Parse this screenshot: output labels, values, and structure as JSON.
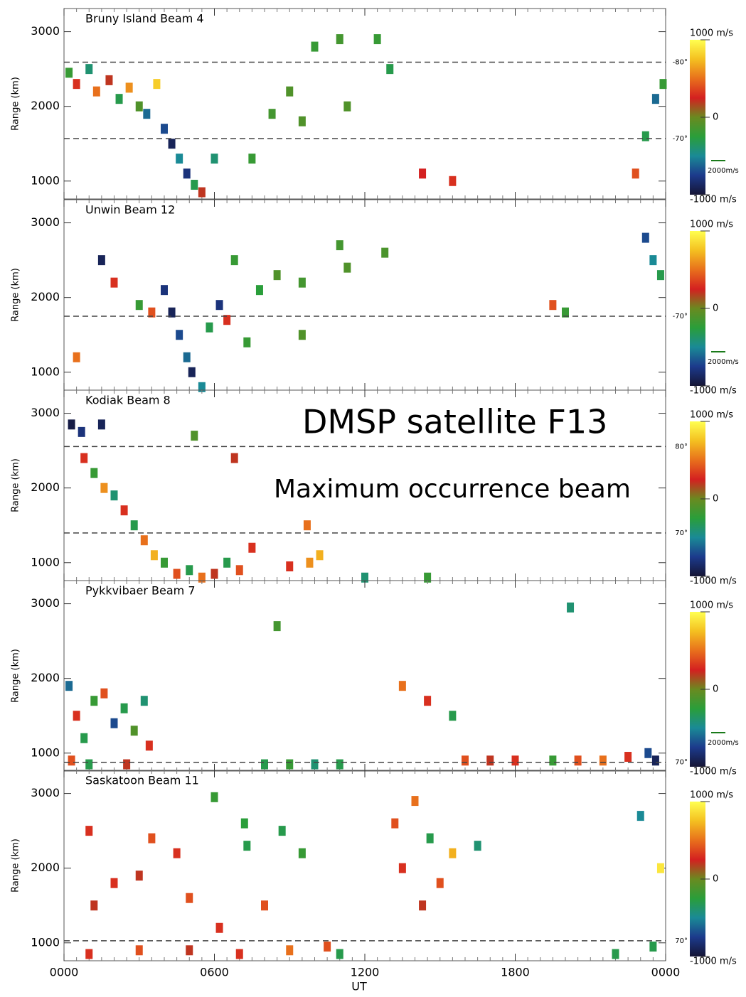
{
  "chart_data": [
    {
      "type": "scatter",
      "title": "Bruny Island  Beam 4",
      "ylabel": "Range (km)",
      "xlim": [
        0,
        24
      ],
      "ylim": [
        760,
        3310
      ],
      "yticks": [
        1000,
        2000,
        3000
      ],
      "x": [
        0.2,
        0.5,
        1.0,
        1.3,
        1.8,
        2.2,
        2.6,
        3.0,
        3.3,
        3.7,
        4.0,
        4.3,
        4.6,
        4.9,
        5.2,
        5.5,
        6.0,
        7.5,
        8.3,
        9.0,
        9.5,
        10.0,
        11.0,
        11.3,
        12.5,
        13.0,
        14.3,
        15.5,
        22.8,
        23.2,
        23.6,
        23.9
      ],
      "values": [
        2450,
        2300,
        2500,
        2200,
        2350,
        2100,
        2250,
        2000,
        1900,
        2300,
        1700,
        1500,
        1300,
        1100,
        950,
        850,
        1300,
        1300,
        1900,
        2200,
        1800,
        2800,
        2900,
        2000,
        2900,
        2500,
        1100,
        1000,
        1100,
        1600,
        2100,
        2300
      ],
      "velocity": [
        -200,
        300,
        -400,
        500,
        200,
        -300,
        600,
        -100,
        -600,
        800,
        -700,
        -900,
        -500,
        -800,
        -300,
        200,
        -400,
        -200,
        -150,
        -100,
        -100,
        -200,
        -150,
        -100,
        -200,
        -300,
        250,
        300,
        400,
        -300,
        -600,
        -200
      ],
      "reference_lines": [
        {
          "range": 2592,
          "latitude_label": "-80°"
        },
        {
          "range": 1569,
          "latitude_label": "-70°"
        }
      ],
      "colorbar": {
        "vlim": [
          -1000,
          1000
        ],
        "ticks": [
          {
            "value": 1000,
            "label": "1000 m/s"
          },
          0,
          {
            "value": -1000,
            "label": "-1000 m/s"
          }
        ],
        "scale_label": "2000m/s",
        "colormap": [
          "#151535",
          "#1c3a8c",
          "#1a8a96",
          "#2a9e3a",
          "#6a8a20",
          "#d42020",
          "#e8701c",
          "#f4c020",
          "#ffff50"
        ]
      }
    },
    {
      "type": "scatter",
      "title": "Unwin  Beam 12",
      "ylabel": "Range (km)",
      "xlim": [
        0,
        24
      ],
      "ylim": [
        760,
        3310
      ],
      "yticks": [
        1000,
        2000,
        3000
      ],
      "x": [
        0.5,
        1.5,
        2.0,
        3.0,
        3.5,
        4.0,
        4.3,
        4.6,
        4.9,
        5.1,
        5.5,
        5.8,
        6.2,
        6.5,
        6.8,
        7.3,
        7.8,
        8.5,
        9.5,
        9.5,
        11.0,
        11.3,
        12.8,
        19.5,
        20.0,
        23.2,
        23.5,
        23.8
      ],
      "values": [
        1200,
        2500,
        2200,
        1900,
        1800,
        2100,
        1800,
        1500,
        1200,
        1000,
        800,
        1600,
        1900,
        1700,
        2500,
        1400,
        2100,
        2300,
        1500,
        2200,
        2700,
        2400,
        2600,
        1900,
        1800,
        2800,
        2500,
        2300
      ],
      "velocity": [
        500,
        -900,
        300,
        -200,
        400,
        -800,
        -900,
        -700,
        -600,
        -900,
        -500,
        -300,
        -800,
        300,
        -200,
        -200,
        -250,
        -100,
        -100,
        -150,
        -150,
        -100,
        -120,
        400,
        -200,
        -700,
        -500,
        -300
      ],
      "reference_lines": [
        {
          "range": 1749,
          "latitude_label": "-70°"
        }
      ],
      "colorbar": {
        "vlim": [
          -1000,
          1000
        ],
        "ticks": [
          {
            "value": 1000,
            "label": "1000 m/s"
          },
          0,
          {
            "value": -1000,
            "label": "-1000 m/s"
          }
        ],
        "scale_label": "2000m/s",
        "colormap": [
          "#151535",
          "#1c3a8c",
          "#1a8a96",
          "#2a9e3a",
          "#6a8a20",
          "#d42020",
          "#e8701c",
          "#f4c020",
          "#ffff50"
        ]
      }
    },
    {
      "type": "scatter",
      "title": "Kodiak  Beam 8",
      "ylabel": "Range (km)",
      "xlim": [
        0,
        24
      ],
      "ylim": [
        760,
        3310
      ],
      "yticks": [
        1000,
        2000,
        3000
      ],
      "x": [
        0.3,
        0.7,
        1.5,
        0.8,
        1.2,
        1.6,
        2.0,
        2.4,
        2.8,
        3.2,
        3.6,
        4.0,
        4.5,
        5.0,
        5.5,
        6.0,
        6.5,
        7.0,
        7.5,
        5.2,
        6.8,
        9.0,
        9.8,
        10.2,
        9.7,
        12.0,
        14.5
      ],
      "values": [
        2850,
        2750,
        2850,
        2400,
        2200,
        2000,
        1900,
        1700,
        1500,
        1300,
        1100,
        1000,
        850,
        900,
        800,
        850,
        1000,
        900,
        1200,
        2700,
        2400,
        950,
        1000,
        1100,
        1500,
        800,
        800
      ],
      "velocity": [
        -950,
        -800,
        -900,
        300,
        -200,
        600,
        -400,
        300,
        -300,
        500,
        700,
        -200,
        400,
        -300,
        500,
        200,
        -300,
        400,
        300,
        -100,
        200,
        300,
        600,
        700,
        500,
        -400,
        -200
      ],
      "reference_lines": [
        {
          "range": 2555,
          "latitude_label": "80°"
        },
        {
          "range": 1398,
          "latitude_label": "70°"
        }
      ],
      "annotations": [
        "DMSP satellite F13",
        "Maximum occurrence beam"
      ],
      "colorbar": {
        "vlim": [
          -1000,
          1000
        ],
        "ticks": [
          {
            "value": 1000,
            "label": "1000 m/s"
          },
          0,
          {
            "value": -1000,
            "label": "-1000 m/s"
          }
        ],
        "colormap": [
          "#151535",
          "#1c3a8c",
          "#1a8a96",
          "#2a9e3a",
          "#6a8a20",
          "#d42020",
          "#e8701c",
          "#f4c020",
          "#ffff50"
        ]
      }
    },
    {
      "type": "scatter",
      "title": "Pykkvibaer  Beam 7",
      "ylabel": "Range (km)",
      "xlim": [
        0,
        24
      ],
      "ylim": [
        760,
        3310
      ],
      "yticks": [
        1000,
        2000,
        3000
      ],
      "x": [
        0.2,
        0.5,
        0.8,
        1.2,
        1.6,
        2.0,
        2.4,
        2.8,
        3.2,
        3.4,
        0.3,
        1.0,
        2.5,
        8.5,
        8.0,
        9.0,
        10.0,
        11.0,
        13.5,
        14.5,
        15.5,
        16.0,
        17.0,
        18.0,
        19.5,
        20.5,
        21.5,
        22.5,
        23.3,
        23.6,
        20.2
      ],
      "values": [
        1900,
        1500,
        1200,
        1700,
        1800,
        1400,
        1600,
        1300,
        1700,
        1100,
        900,
        850,
        850,
        2700,
        850,
        850,
        850,
        850,
        1900,
        1700,
        1500,
        900,
        900,
        900,
        900,
        900,
        900,
        950,
        1000,
        900,
        2950
      ],
      "velocity": [
        -600,
        300,
        -300,
        -200,
        400,
        -700,
        -300,
        -100,
        -400,
        300,
        400,
        -300,
        200,
        -150,
        -300,
        -200,
        -400,
        -300,
        500,
        300,
        -300,
        400,
        200,
        300,
        -200,
        400,
        500,
        300,
        -700,
        -900,
        -400
      ],
      "reference_lines": [
        {
          "range": 877,
          "latitude_label": "70°"
        }
      ],
      "colorbar": {
        "vlim": [
          -1000,
          1000
        ],
        "ticks": [
          {
            "value": 1000,
            "label": "1000 m/s"
          },
          0,
          {
            "value": -1000,
            "label": "-1000 m/s"
          }
        ],
        "scale_label": "2000m/s",
        "colormap": [
          "#151535",
          "#1c3a8c",
          "#1a8a96",
          "#2a9e3a",
          "#6a8a20",
          "#d42020",
          "#e8701c",
          "#f4c020",
          "#ffff50"
        ]
      }
    },
    {
      "type": "scatter",
      "title": "Saskatoon  Beam 11",
      "ylabel": "Range (km)",
      "xlabel": "UT",
      "xlim": [
        0,
        24
      ],
      "ylim": [
        760,
        3310
      ],
      "yticks": [
        1000,
        2000,
        3000
      ],
      "xticks": [
        {
          "value": 0,
          "label": "0000"
        },
        {
          "value": 6,
          "label": "0600"
        },
        {
          "value": 12,
          "label": "1200"
        },
        {
          "value": 18,
          "label": "1800"
        },
        {
          "value": 24,
          "label": "0000"
        }
      ],
      "x": [
        1.0,
        1.2,
        2.0,
        3.0,
        3.5,
        4.5,
        5.0,
        6.0,
        6.2,
        7.2,
        7.3,
        8.0,
        8.7,
        9.5,
        1.0,
        3.0,
        5.0,
        7.0,
        9.0,
        10.5,
        11.0,
        13.2,
        13.5,
        14.0,
        14.3,
        14.6,
        15.0,
        15.5,
        16.5,
        22.0,
        23.0,
        23.5,
        23.8
      ],
      "values": [
        2500,
        1500,
        1800,
        1900,
        2400,
        2200,
        1600,
        2950,
        1200,
        2600,
        2300,
        1500,
        2500,
        2200,
        850,
        900,
        900,
        850,
        900,
        950,
        850,
        2600,
        2000,
        2900,
        1500,
        2400,
        1800,
        2200,
        2300,
        850,
        2700,
        950,
        2000
      ],
      "velocity": [
        300,
        200,
        300,
        200,
        400,
        300,
        400,
        -200,
        300,
        -250,
        -300,
        400,
        -300,
        -200,
        300,
        400,
        200,
        300,
        500,
        400,
        -300,
        400,
        300,
        500,
        200,
        -300,
        400,
        700,
        -400,
        -300,
        -500,
        -300,
        900
      ],
      "reference_lines": [
        {
          "range": 1028,
          "latitude_label": "70°"
        }
      ],
      "colorbar": {
        "vlim": [
          -1000,
          1000
        ],
        "ticks": [
          {
            "value": 1000,
            "label": "1000 m/s"
          },
          0,
          {
            "value": -1000,
            "label": "-1000 m/s"
          }
        ],
        "colormap": [
          "#151535",
          "#1c3a8c",
          "#1a8a96",
          "#2a9e3a",
          "#6a8a20",
          "#d42020",
          "#e8701c",
          "#f4c020",
          "#ffff50"
        ]
      }
    }
  ]
}
